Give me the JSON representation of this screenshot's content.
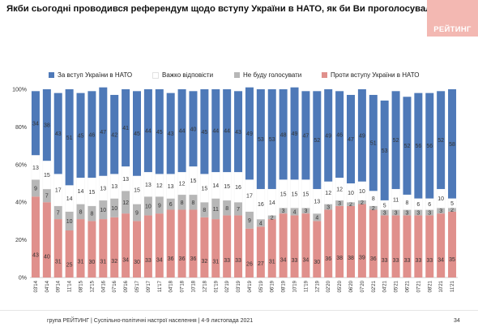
{
  "header": {
    "title": "Якби сьогодні проводився референдум щодо вступу України в НАТО, як би Ви проголосували?",
    "logo_text": "РЕЙТИНГ",
    "logo_color": "#f3b8b2"
  },
  "footer": {
    "text": "група РЕЙТИНГ | Суспільно-політичні настрої населення  | 4-9 листопада 2021",
    "page_number": "34"
  },
  "chart_data": {
    "type": "bar",
    "stacked": true,
    "percent_stacked": true,
    "ylim": [
      0,
      100
    ],
    "yticks": [
      "0%",
      "20%",
      "40%",
      "60%",
      "80%",
      "100%"
    ],
    "legend_position": "top",
    "grid": false,
    "categories": [
      "03'14",
      "04'14",
      "09'14",
      "11'14",
      "08'15",
      "12'15",
      "04'16",
      "07'16",
      "09'16",
      "05'17",
      "09'17",
      "11'17",
      "04'18",
      "07'18",
      "10'18",
      "12'18",
      "01'19",
      "02'19",
      "03'19",
      "04'19",
      "05'19",
      "06'19",
      "08'19",
      "10'19",
      "11'19",
      "12'19",
      "02'20",
      "05'20",
      "06'20",
      "07'20",
      "02'21",
      "04'21",
      "05'21",
      "06'21",
      "07'21",
      "08'21",
      "10'21",
      "11'21"
    ],
    "series": [
      {
        "name": "Проти вступу України в НАТО",
        "color": "#e0908c",
        "values": [
          43,
          40,
          31,
          25,
          31,
          30,
          31,
          32,
          34,
          30,
          33,
          34,
          36,
          36,
          36,
          32,
          31,
          33,
          33,
          26,
          27,
          31,
          34,
          33,
          34,
          30,
          36,
          38,
          38,
          39,
          36,
          33,
          33,
          33,
          33,
          33,
          34,
          35
        ]
      },
      {
        "name": "Не буду голосувати",
        "color": "#b7b7b7",
        "values": [
          9,
          7,
          7,
          10,
          8,
          8,
          10,
          10,
          12,
          9,
          10,
          9,
          6,
          8,
          8,
          8,
          11,
          8,
          7,
          9,
          4,
          2,
          3,
          4,
          3,
          4,
          3,
          3,
          2,
          2,
          2,
          3,
          3,
          3,
          3,
          3,
          3,
          2
        ]
      },
      {
        "name": "Важко відповісти",
        "color": "#ffffff",
        "values": [
          13,
          15,
          17,
          14,
          14,
          15,
          13,
          13,
          13,
          15,
          13,
          12,
          13,
          12,
          15,
          15,
          14,
          15,
          16,
          17,
          16,
          14,
          15,
          15,
          15,
          13,
          12,
          12,
          10,
          10,
          8,
          5,
          11,
          8,
          6,
          6,
          10,
          5
        ]
      },
      {
        "name": "За вступ України в НАТО",
        "color": "#4e79b8",
        "values": [
          34,
          38,
          43,
          51,
          45,
          46,
          47,
          42,
          41,
          45,
          44,
          45,
          43,
          44,
          40,
          45,
          44,
          44,
          43,
          49,
          53,
          53,
          48,
          49,
          47,
          52,
          49,
          46,
          47,
          49,
          51,
          53,
          52,
          52,
          56,
          56,
          52,
          58
        ]
      }
    ],
    "legend_order": [
      "За вступ України в НАТО",
      "Важко відповісти",
      "Не буду голосувати",
      "Проти вступу України в НАТО"
    ]
  }
}
